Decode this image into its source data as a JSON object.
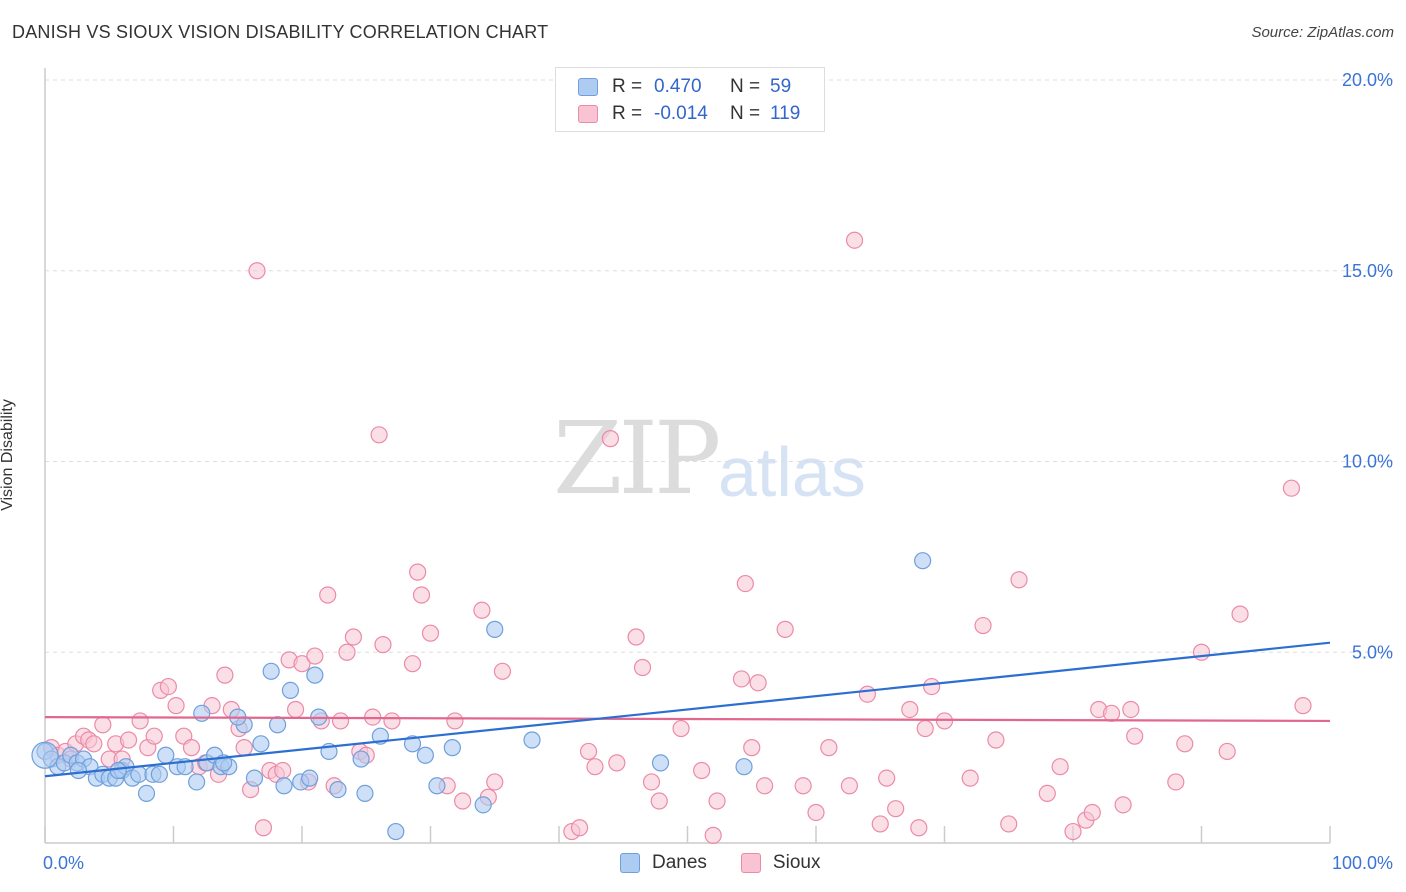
{
  "title": "DANISH VS SIOUX VISION DISABILITY CORRELATION CHART",
  "source": "Source: ZipAtlas.com",
  "watermark": {
    "zip": "ZIP",
    "atlas": "atlas"
  },
  "legend": {
    "rows": [
      {
        "r_label": "R =",
        "r_value": "0.470",
        "n_label": "N =",
        "n_value": "59"
      },
      {
        "r_label": "R =",
        "r_value": "-0.014",
        "n_label": "N =",
        "n_value": "119"
      }
    ]
  },
  "colors": {
    "danes_fill": "#aecbf2",
    "danes_stroke": "#6f9fdc",
    "danes_line": "#2c6fd1",
    "sioux_fill": "#f8c4d3",
    "sioux_stroke": "#ec8aa8",
    "sioux_line": "#e2678f",
    "axis_label": "#3b73d6",
    "grid": "#dddddd"
  },
  "chart_data": {
    "type": "scatter",
    "title": "DANISH VS SIOUX VISION DISABILITY CORRELATION CHART",
    "xlabel": "",
    "ylabel": "Vision Disability",
    "xlim": [
      0,
      100
    ],
    "ylim": [
      0,
      20
    ],
    "x_tick_labels": [
      "0.0%",
      "100.0%"
    ],
    "y_ticks": [
      5,
      10,
      15,
      20
    ],
    "y_tick_labels": [
      "5.0%",
      "10.0%",
      "15.0%",
      "20.0%"
    ],
    "grid": true,
    "legend_position": "bottom-center",
    "series": [
      {
        "name": "Danes",
        "trend": {
          "x0": 0,
          "y0": 1.75,
          "x1": 100,
          "y1": 5.25
        },
        "points": [
          [
            0.0,
            2.4
          ],
          [
            0.5,
            2.2
          ],
          [
            1.0,
            2.0
          ],
          [
            1.5,
            2.1
          ],
          [
            2.0,
            2.3
          ],
          [
            2.5,
            2.1
          ],
          [
            3.0,
            2.2
          ],
          [
            3.5,
            2.0
          ],
          [
            4.0,
            1.7
          ],
          [
            4.5,
            1.8
          ],
          [
            5.0,
            1.7
          ],
          [
            5.5,
            1.7
          ],
          [
            6.0,
            1.9
          ],
          [
            6.3,
            2.0
          ],
          [
            6.8,
            1.7
          ],
          [
            7.3,
            1.8
          ],
          [
            7.9,
            1.3
          ],
          [
            8.4,
            1.8
          ],
          [
            8.9,
            1.8
          ],
          [
            9.4,
            2.3
          ],
          [
            10.3,
            2.0
          ],
          [
            10.9,
            2.0
          ],
          [
            11.8,
            1.6
          ],
          [
            12.6,
            2.1
          ],
          [
            13.2,
            2.3
          ],
          [
            13.7,
            2.0
          ],
          [
            14.3,
            2.0
          ],
          [
            15.5,
            3.1
          ],
          [
            16.3,
            1.7
          ],
          [
            16.8,
            2.6
          ],
          [
            17.6,
            4.5
          ],
          [
            18.1,
            3.1
          ],
          [
            18.6,
            1.5
          ],
          [
            19.1,
            4.0
          ],
          [
            19.9,
            1.6
          ],
          [
            20.6,
            1.7
          ],
          [
            21.3,
            3.3
          ],
          [
            21.0,
            4.4
          ],
          [
            22.1,
            2.4
          ],
          [
            22.8,
            1.4
          ],
          [
            24.6,
            2.2
          ],
          [
            24.9,
            1.3
          ],
          [
            26.1,
            2.8
          ],
          [
            27.3,
            0.3
          ],
          [
            28.6,
            2.6
          ],
          [
            29.6,
            2.3
          ],
          [
            30.5,
            1.5
          ],
          [
            31.7,
            2.5
          ],
          [
            34.1,
            1.0
          ],
          [
            35.0,
            5.6
          ],
          [
            37.9,
            2.7
          ],
          [
            47.9,
            2.1
          ],
          [
            54.4,
            2.0
          ],
          [
            68.3,
            7.4
          ],
          [
            2.6,
            1.9
          ],
          [
            5.7,
            1.9
          ],
          [
            13.9,
            2.1
          ],
          [
            12.2,
            3.4
          ],
          [
            15.0,
            3.3
          ]
        ]
      },
      {
        "name": "Sioux",
        "trend": {
          "x0": 0,
          "y0": 3.3,
          "x1": 100,
          "y1": 3.2
        },
        "points": [
          [
            0.5,
            2.5
          ],
          [
            1.0,
            2.3
          ],
          [
            1.6,
            2.4
          ],
          [
            2.0,
            2.2
          ],
          [
            2.4,
            2.6
          ],
          [
            3.0,
            2.8
          ],
          [
            3.4,
            2.7
          ],
          [
            3.8,
            2.6
          ],
          [
            4.5,
            3.1
          ],
          [
            5.0,
            2.2
          ],
          [
            5.5,
            2.6
          ],
          [
            6.0,
            2.2
          ],
          [
            6.5,
            2.7
          ],
          [
            7.4,
            3.2
          ],
          [
            8.0,
            2.5
          ],
          [
            8.5,
            2.8
          ],
          [
            9.0,
            4.0
          ],
          [
            9.6,
            4.1
          ],
          [
            10.2,
            3.6
          ],
          [
            10.8,
            2.8
          ],
          [
            11.4,
            2.5
          ],
          [
            12.0,
            2.0
          ],
          [
            12.5,
            2.1
          ],
          [
            13.0,
            3.6
          ],
          [
            13.5,
            1.8
          ],
          [
            14.0,
            4.4
          ],
          [
            14.5,
            3.5
          ],
          [
            15.1,
            3.0
          ],
          [
            15.5,
            2.5
          ],
          [
            16.0,
            1.4
          ],
          [
            16.5,
            15.0
          ],
          [
            17.0,
            0.4
          ],
          [
            17.5,
            1.9
          ],
          [
            18.0,
            1.8
          ],
          [
            18.5,
            1.9
          ],
          [
            19.0,
            4.8
          ],
          [
            19.5,
            3.5
          ],
          [
            20.0,
            4.7
          ],
          [
            20.5,
            1.6
          ],
          [
            21.0,
            4.9
          ],
          [
            21.5,
            3.2
          ],
          [
            22.0,
            6.5
          ],
          [
            22.5,
            1.5
          ],
          [
            23.0,
            3.2
          ],
          [
            23.5,
            5.0
          ],
          [
            24.0,
            5.4
          ],
          [
            24.5,
            2.4
          ],
          [
            25.0,
            2.3
          ],
          [
            25.5,
            3.3
          ],
          [
            26.0,
            10.7
          ],
          [
            26.3,
            5.2
          ],
          [
            27.0,
            3.2
          ],
          [
            28.6,
            4.7
          ],
          [
            29.0,
            7.1
          ],
          [
            29.3,
            6.5
          ],
          [
            30.0,
            5.5
          ],
          [
            31.3,
            1.5
          ],
          [
            31.9,
            3.2
          ],
          [
            32.5,
            1.1
          ],
          [
            34.0,
            6.1
          ],
          [
            34.5,
            1.2
          ],
          [
            35.0,
            1.6
          ],
          [
            35.6,
            4.5
          ],
          [
            41.0,
            0.3
          ],
          [
            41.6,
            0.4
          ],
          [
            42.3,
            2.4
          ],
          [
            42.8,
            2.0
          ],
          [
            44.0,
            10.6
          ],
          [
            44.5,
            2.1
          ],
          [
            46.0,
            5.4
          ],
          [
            46.5,
            4.6
          ],
          [
            47.2,
            1.6
          ],
          [
            47.8,
            1.1
          ],
          [
            49.5,
            3.0
          ],
          [
            51.1,
            1.9
          ],
          [
            52.0,
            0.2
          ],
          [
            52.3,
            1.1
          ],
          [
            54.2,
            4.3
          ],
          [
            54.5,
            6.8
          ],
          [
            55.0,
            2.5
          ],
          [
            55.5,
            4.2
          ],
          [
            56.0,
            1.5
          ],
          [
            57.6,
            5.6
          ],
          [
            59.0,
            1.5
          ],
          [
            60.0,
            0.8
          ],
          [
            61.0,
            2.5
          ],
          [
            62.6,
            1.5
          ],
          [
            63.0,
            15.8
          ],
          [
            64.0,
            3.9
          ],
          [
            65.0,
            0.5
          ],
          [
            65.5,
            1.7
          ],
          [
            66.2,
            0.9
          ],
          [
            67.3,
            3.5
          ],
          [
            68.0,
            0.4
          ],
          [
            68.5,
            3.0
          ],
          [
            69.0,
            4.1
          ],
          [
            70.0,
            3.2
          ],
          [
            72.0,
            1.7
          ],
          [
            73.0,
            5.7
          ],
          [
            74.0,
            2.7
          ],
          [
            75.0,
            0.5
          ],
          [
            75.8,
            6.9
          ],
          [
            78.0,
            1.3
          ],
          [
            79.0,
            2.0
          ],
          [
            80.0,
            0.3
          ],
          [
            81.0,
            0.6
          ],
          [
            81.5,
            0.8
          ],
          [
            82.0,
            3.5
          ],
          [
            83.0,
            3.4
          ],
          [
            83.9,
            1.0
          ],
          [
            84.5,
            3.5
          ],
          [
            84.8,
            2.8
          ],
          [
            88.0,
            1.6
          ],
          [
            88.7,
            2.6
          ],
          [
            90.0,
            5.0
          ],
          [
            92.0,
            2.4
          ],
          [
            93.0,
            6.0
          ],
          [
            97.0,
            9.3
          ],
          [
            97.9,
            3.6
          ]
        ]
      }
    ]
  }
}
